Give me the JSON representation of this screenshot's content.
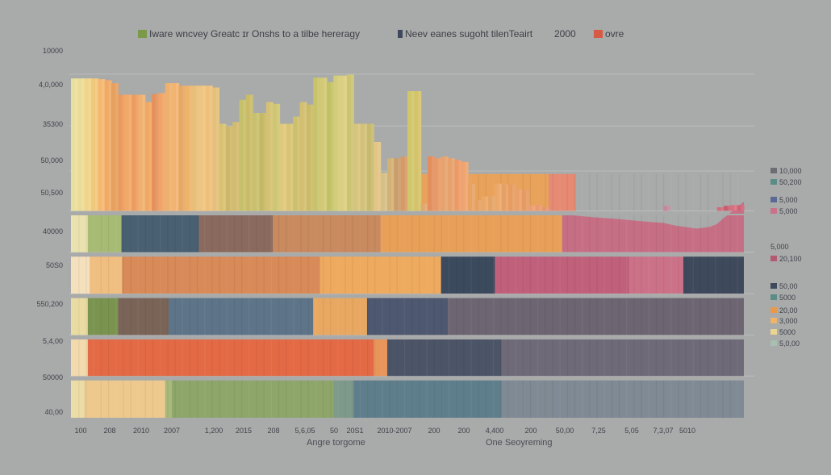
{
  "chart_data": {
    "type": "bar",
    "title": "",
    "legend_top": [
      {
        "label": "Iware wncvey Greatc ɪr Onshs to a tilbe hereragy",
        "color": "#7a9a4a"
      },
      {
        "label": "Neev eanes sugoht tilenTeairt",
        "color": "#3e4a5c"
      },
      {
        "label": "2000",
        "color": ""
      },
      {
        "label": "ovre",
        "color": "#d75a45"
      }
    ],
    "y_tick_labels": [
      "10000",
      "4,0,000",
      "35300",
      "50,000",
      "50,500",
      "40000",
      "50S0",
      "550,200",
      "5,4,00",
      "50000",
      "40,00"
    ],
    "x_tick_labels": [
      "100",
      "208",
      "2010",
      "2007",
      "1,200",
      "2015",
      "208",
      "5,6,05",
      "50",
      "20S1",
      "2010-2007",
      "200",
      "200",
      "4,400",
      "200",
      "50,00",
      "7,25",
      "5,05",
      "7,3,07",
      "5010"
    ],
    "xlabel_left": "Angre torgome",
    "xlabel_right": "One Seoyreming",
    "right_legend": [
      {
        "label": "10,000",
        "color": "#6a6d72"
      },
      {
        "label": "50,200",
        "color": "#5a8d86"
      },
      {
        "label": "5,000",
        "color": "#5a6a94"
      },
      {
        "label": "5,000",
        "color": "#c8738a"
      },
      {
        "label": "5,000",
        "color": ""
      },
      {
        "label": "20,100",
        "color": "#b35a72"
      },
      {
        "label": "50,00",
        "color": "#3e4a5c"
      },
      {
        "label": "5000",
        "color": "#5a8d86"
      },
      {
        "label": "20,00",
        "color": "#e89a4a"
      },
      {
        "label": "3,000",
        "color": "#efb46a"
      },
      {
        "label": "5000",
        "color": "#e9d490"
      },
      {
        "label": "5,0,00",
        "color": "#a8c0b2"
      }
    ],
    "x_count": 100,
    "ylim": [
      0,
      100
    ],
    "bands": [
      {
        "name": "row-1",
        "range": [
          0,
          10.5
        ],
        "segments": [
          {
            "from": 0,
            "to": 2,
            "color": "#ecdca6"
          },
          {
            "from": 2,
            "to": 14,
            "color": "#eec98e"
          },
          {
            "from": 14,
            "to": 15,
            "color": "#a9b97c"
          },
          {
            "from": 15,
            "to": 39,
            "color": "#8ea66a"
          },
          {
            "from": 39,
            "to": 42,
            "color": "#7d9a8a"
          },
          {
            "from": 42,
            "to": 64,
            "color": "#5f7e8c"
          },
          {
            "from": 64,
            "to": 100,
            "color": "#7f8a94"
          }
        ]
      },
      {
        "name": "row-2",
        "range": [
          11.5,
          21.8
        ],
        "segments": [
          {
            "from": 0,
            "to": 2.5,
            "color": "#f2d9ae"
          },
          {
            "from": 2.5,
            "to": 45,
            "color": "#e36a45"
          },
          {
            "from": 45,
            "to": 47,
            "color": "#e8955a"
          },
          {
            "from": 47,
            "to": 64,
            "color": "#4c5568"
          },
          {
            "from": 64,
            "to": 100,
            "color": "#6e6a78"
          }
        ]
      },
      {
        "name": "row-3",
        "range": [
          22.8,
          33.2
        ],
        "segments": [
          {
            "from": 0,
            "to": 2.5,
            "color": "#e9dba2"
          },
          {
            "from": 2.5,
            "to": 7,
            "color": "#7a9450"
          },
          {
            "from": 7,
            "to": 14.5,
            "color": "#7a6458"
          },
          {
            "from": 14.5,
            "to": 36,
            "color": "#5e7488"
          },
          {
            "from": 36,
            "to": 44,
            "color": "#e8a861"
          },
          {
            "from": 44,
            "to": 56,
            "color": "#4e5870"
          },
          {
            "from": 56,
            "to": 100,
            "color": "#6d6572"
          }
        ]
      },
      {
        "name": "row-4",
        "range": [
          34.2,
          44.6
        ],
        "segments": [
          {
            "from": 0,
            "to": 2.8,
            "color": "#f4e0bc"
          },
          {
            "from": 2.8,
            "to": 7.6,
            "color": "#f0be80"
          },
          {
            "from": 7.6,
            "to": 37,
            "color": "#d88a58"
          },
          {
            "from": 37,
            "to": 55,
            "color": "#eeaa5e"
          },
          {
            "from": 55,
            "to": 63,
            "color": "#3c4a5e"
          },
          {
            "from": 63,
            "to": 83,
            "color": "#c0607a"
          },
          {
            "from": 83,
            "to": 91,
            "color": "#cc7288"
          },
          {
            "from": 91,
            "to": 100,
            "color": "#3e4a5c"
          }
        ]
      },
      {
        "name": "row-5",
        "range": [
          45.6,
          56.0
        ],
        "segments": [
          {
            "from": 0,
            "to": 2.5,
            "color": "#eae2ae"
          },
          {
            "from": 2.5,
            "to": 7.5,
            "color": "#a8bb74"
          },
          {
            "from": 7.5,
            "to": 19,
            "color": "#486072"
          },
          {
            "from": 19,
            "to": 30,
            "color": "#8a6a5e"
          },
          {
            "from": 30,
            "to": 46,
            "color": "#c88a5e"
          },
          {
            "from": 46,
            "to": 73,
            "color": "#e8a058"
          },
          {
            "from": 73,
            "to": 100,
            "color": "#c66f84",
            "top_line": [
              [
                73,
                56.0
              ],
              [
                75,
                55.7
              ],
              [
                78,
                55.2
              ],
              [
                81,
                54.8
              ],
              [
                85,
                54.1
              ],
              [
                88,
                53.7
              ],
              [
                90,
                52.9
              ],
              [
                92,
                52.4
              ],
              [
                93,
                52.1
              ],
              [
                95,
                52.6
              ],
              [
                96,
                53.4
              ],
              [
                97,
                55.0
              ],
              [
                98,
                56.5
              ],
              [
                100,
                59.5
              ]
            ]
          }
        ]
      },
      {
        "name": "row-6",
        "range": [
          57.0,
          67.4
        ],
        "segments": [
          {
            "from": 0,
            "to": 2.5,
            "color": "#ecdea0"
          },
          {
            "from": 2.5,
            "to": 7.8,
            "color": "#d8d49a"
          },
          {
            "from": 7.8,
            "to": 35,
            "color": "#5a8a84"
          },
          {
            "from": 35,
            "to": 37,
            "color": "#d4d49c"
          },
          {
            "from": 37,
            "to": 71,
            "color": "#e8a25a"
          },
          {
            "from": 71,
            "to": 75,
            "color": "#e68a74"
          }
        ]
      }
    ],
    "bars": [
      {
        "x": 0.0,
        "top": 93.5,
        "color": "#e8df9c"
      },
      {
        "x": 1.0,
        "top": 93.5,
        "color": "#eadc96"
      },
      {
        "x": 2.0,
        "top": 93.5,
        "color": "#efd48a"
      },
      {
        "x": 3.0,
        "top": 93.5,
        "color": "#f0c87c"
      },
      {
        "x": 4.0,
        "top": 93.3,
        "color": "#f4b870"
      },
      {
        "x": 5.0,
        "top": 93.0,
        "color": "#f0aa66"
      },
      {
        "x": 6.0,
        "top": 92.2,
        "color": "#e6a060"
      },
      {
        "x": 7.0,
        "top": 89.0,
        "color": "#ea9a5a"
      },
      {
        "x": 8.0,
        "top": 89.0,
        "color": "#f2a866"
      },
      {
        "x": 9.0,
        "top": 89.0,
        "color": "#ec9c5e"
      },
      {
        "x": 10.0,
        "top": 89.0,
        "color": "#f2b070"
      },
      {
        "x": 11.0,
        "top": 87.0,
        "color": "#f0a862"
      },
      {
        "x": 12.0,
        "top": 89.2,
        "color": "#e6905a"
      },
      {
        "x": 13.0,
        "top": 89.5,
        "color": "#f0a466"
      },
      {
        "x": 14.0,
        "top": 92.2,
        "color": "#eeb06c"
      },
      {
        "x": 15.0,
        "top": 92.2,
        "color": "#f2b470"
      },
      {
        "x": 16.0,
        "top": 91.5,
        "color": "#e6a862"
      },
      {
        "x": 17.0,
        "top": 91.5,
        "color": "#eeb46a"
      },
      {
        "x": 18.0,
        "top": 91.5,
        "color": "#e8be78"
      },
      {
        "x": 19.0,
        "top": 91.5,
        "color": "#f0c47e"
      },
      {
        "x": 20.0,
        "top": 91.5,
        "color": "#eec07a"
      },
      {
        "x": 21.0,
        "top": 91.0,
        "color": "#e4c07a"
      },
      {
        "x": 22.0,
        "top": 81.0,
        "color": "#d8c270"
      },
      {
        "x": 23.0,
        "top": 80.3,
        "color": "#ceb668"
      },
      {
        "x": 24.0,
        "top": 81.5,
        "color": "#d2ba6e"
      },
      {
        "x": 25.0,
        "top": 87.6,
        "color": "#c6c06a"
      },
      {
        "x": 26.0,
        "top": 89.0,
        "color": "#cabc66"
      },
      {
        "x": 27.0,
        "top": 84.0,
        "color": "#c8c06c"
      },
      {
        "x": 28.0,
        "top": 84.0,
        "color": "#c4b864"
      },
      {
        "x": 29.0,
        "top": 87.0,
        "color": "#d4c272"
      },
      {
        "x": 30.0,
        "top": 86.5,
        "color": "#cec672"
      },
      {
        "x": 31.0,
        "top": 81.0,
        "color": "#e0c87c"
      },
      {
        "x": 32.0,
        "top": 81.0,
        "color": "#d8c474"
      },
      {
        "x": 33.0,
        "top": 83.0,
        "color": "#ccc06c"
      },
      {
        "x": 34.0,
        "top": 87.0,
        "color": "#d4bf70"
      },
      {
        "x": 35.0,
        "top": 86.3,
        "color": "#cbbb66"
      },
      {
        "x": 36.0,
        "top": 93.7,
        "color": "#c8c36a"
      },
      {
        "x": 37.0,
        "top": 93.7,
        "color": "#d2c974"
      },
      {
        "x": 38.0,
        "top": 92.5,
        "color": "#c2c164"
      },
      {
        "x": 39.0,
        "top": 94.3,
        "color": "#d2cc78"
      },
      {
        "x": 40.0,
        "top": 94.3,
        "color": "#dccf80"
      },
      {
        "x": 41.0,
        "top": 94.6,
        "color": "#cbc572"
      },
      {
        "x": 42.0,
        "top": 81.0,
        "color": "#d7c47c"
      },
      {
        "x": 43.0,
        "top": 81.0,
        "color": "#d2c278"
      },
      {
        "x": 44.0,
        "top": 81.0,
        "color": "#c7ba6e"
      },
      {
        "x": 45.0,
        "top": 76.0,
        "color": "#e3c584"
      },
      {
        "x": 46.0,
        "top": 67.5,
        "color": "#d6c086"
      },
      {
        "x": 47.0,
        "top": 71.5,
        "color": "#d3b176"
      },
      {
        "x": 48.0,
        "top": 71.5,
        "color": "#ca9c6a"
      },
      {
        "x": 49.0,
        "top": 72.0,
        "color": "#d59a66"
      },
      {
        "x": 50.0,
        "top": 90.0,
        "color": "#cfc76a"
      },
      {
        "x": 51.0,
        "top": 90.0,
        "color": "#d5c36a"
      },
      {
        "x": 52.0,
        "top": 59.0,
        "color": "#e0a86e"
      },
      {
        "x": 53.0,
        "top": 72.0,
        "color": "#e48e5e"
      },
      {
        "x": 54.0,
        "top": 71.5,
        "color": "#e89a66"
      },
      {
        "x": 55.0,
        "top": 72.0,
        "color": "#e6a36e"
      },
      {
        "x": 56.0,
        "top": 71.5,
        "color": "#e7a26c"
      },
      {
        "x": 57.0,
        "top": 71.0,
        "color": "#ec9a66"
      },
      {
        "x": 58.0,
        "top": 70.5,
        "color": "#eea46e"
      },
      {
        "x": 59.0,
        "top": 64.5,
        "color": "#e8a262"
      },
      {
        "x": 60.0,
        "top": 60.0,
        "color": "#e6a062"
      },
      {
        "x": 61.0,
        "top": 61.0,
        "color": "#eaa868"
      },
      {
        "x": 62.0,
        "top": 61.0,
        "color": "#e5a466"
      },
      {
        "x": 63.0,
        "top": 64.5,
        "color": "#eba86a"
      },
      {
        "x": 64.0,
        "top": 64.3,
        "color": "#e7a064"
      },
      {
        "x": 65.0,
        "top": 64.3,
        "color": "#e79c60"
      },
      {
        "x": 66.0,
        "top": 63.0,
        "color": "#eba06a"
      },
      {
        "x": 67.0,
        "top": 62.8,
        "color": "#e59a62"
      },
      {
        "x": 68.0,
        "top": 58.5,
        "color": "#ec9e70"
      },
      {
        "x": 69.0,
        "top": 58.5,
        "color": "#ea9a6c"
      },
      {
        "x": 70.0,
        "top": 58.0,
        "color": "#e6966a"
      },
      {
        "x": 73.0,
        "top": 54.5,
        "color": "#d8788a"
      },
      {
        "x": 75.0,
        "top": 54.2,
        "color": "#c87686"
      },
      {
        "x": 77.0,
        "top": 53.8,
        "color": "#d07e90"
      },
      {
        "x": 79.0,
        "top": 53.3,
        "color": "#c06c80"
      },
      {
        "x": 81.0,
        "top": 52.9,
        "color": "#ca7a8c"
      },
      {
        "x": 83.0,
        "top": 52.3,
        "color": "#c47286"
      },
      {
        "x": 85.0,
        "top": 51.9,
        "color": "#d38090"
      },
      {
        "x": 88.0,
        "top": 58.4,
        "color": "#c48898"
      },
      {
        "x": 89.5,
        "top": 51.8,
        "color": "#b6b8c4"
      },
      {
        "x": 91.0,
        "top": 50.0,
        "color": "#bfa0b0"
      },
      {
        "x": 94.0,
        "top": 53.0,
        "color": "#d97a86"
      },
      {
        "x": 95.0,
        "top": 56.0,
        "color": "#d8707c"
      },
      {
        "x": 96.0,
        "top": 58.0,
        "color": "#cf6c78"
      },
      {
        "x": 97.0,
        "top": 58.4,
        "color": "#c75e70"
      },
      {
        "x": 98.0,
        "top": 58.6,
        "color": "#d77080"
      },
      {
        "x": 99.0,
        "top": 58.6,
        "color": "#cc6476"
      }
    ]
  }
}
